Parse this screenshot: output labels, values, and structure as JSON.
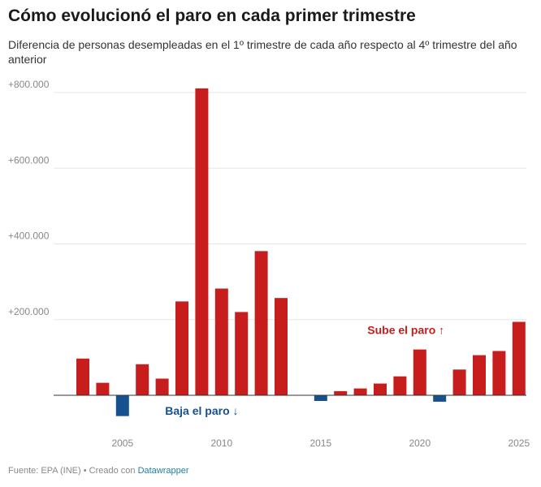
{
  "header": {
    "title": "Cómo evolucionó el paro en cada primer trimestre",
    "subtitle": "Diferencia de personas desempleadas en el 1º trimestre de cada año respecto al 4º trimestre del año anterior"
  },
  "footer": {
    "source": "Fuente: EPA (INE) • Creado con ",
    "tool": "Datawrapper"
  },
  "colors": {
    "up": "#c71e1d",
    "down": "#15508f",
    "grid": "#e6e6e6",
    "axis": "#333333",
    "tick": "#888888"
  },
  "chart_data": {
    "type": "bar",
    "x": [
      2003,
      2004,
      2005,
      2006,
      2007,
      2008,
      2009,
      2010,
      2011,
      2012,
      2013,
      2014,
      2015,
      2016,
      2017,
      2018,
      2019,
      2020,
      2021,
      2022,
      2023,
      2024,
      2025
    ],
    "values": [
      97000,
      33000,
      -55000,
      82000,
      44000,
      248000,
      811000,
      282000,
      220000,
      381000,
      257000,
      0,
      -15000,
      11000,
      18000,
      31000,
      50000,
      121000,
      -17000,
      68000,
      106000,
      117000,
      194000
    ],
    "ylim": [
      -60000,
      830000
    ],
    "yticks": [
      200000,
      400000,
      600000,
      800000
    ],
    "ytick_labels": [
      "+200.000",
      "+400.000",
      "+600.000",
      "+800.000"
    ],
    "xticks": [
      2005,
      2010,
      2015,
      2020,
      2025
    ],
    "xtick_labels": [
      "2005",
      "2010",
      "2015",
      "2020",
      "2025"
    ],
    "grid": true,
    "annotations": [
      {
        "text": "Sube el paro ↑",
        "year": 2019.3,
        "value": 162000,
        "kind": "up"
      },
      {
        "text": "Baja el paro ↓",
        "year": 2009,
        "value": -52000,
        "kind": "down"
      }
    ]
  }
}
